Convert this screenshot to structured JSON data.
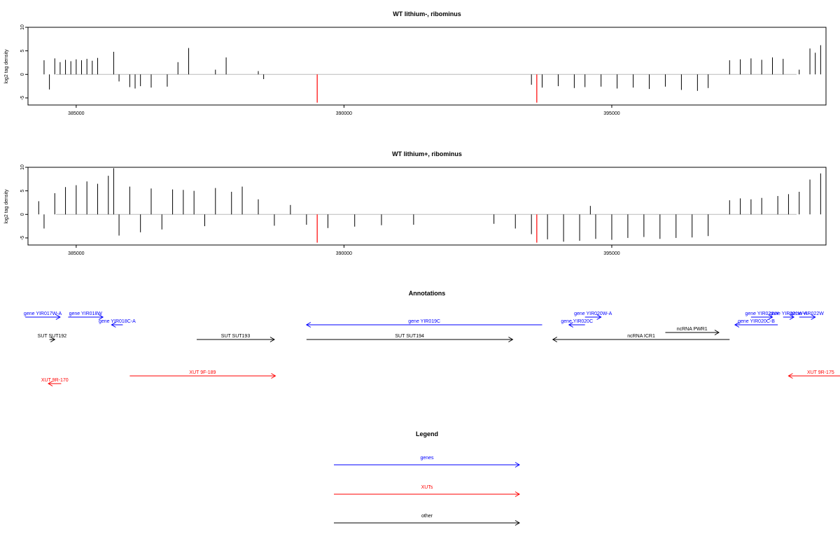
{
  "chart_data": [
    {
      "type": "bar",
      "title": "WT lithium-, ribominus",
      "xlabel": "",
      "ylabel": "log2 tag density",
      "xlim": [
        384100,
        399000
      ],
      "ylim": [
        -6.5,
        10
      ],
      "x_ticks": [
        385000,
        390000,
        395000
      ],
      "y_ticks": [
        -5,
        0,
        5,
        10
      ],
      "marker_positions": [
        389500,
        393600
      ],
      "marker_color": "#ff0000",
      "marker_value": -6,
      "bar_color": "#000000",
      "bars": [
        [
          384400,
          3.0
        ],
        [
          384500,
          -3.2
        ],
        [
          384600,
          3.4
        ],
        [
          384700,
          2.6
        ],
        [
          384800,
          3.1
        ],
        [
          384900,
          2.8
        ],
        [
          385000,
          3.2
        ],
        [
          385100,
          3.0
        ],
        [
          385200,
          3.3
        ],
        [
          385300,
          2.9
        ],
        [
          385400,
          3.5
        ],
        [
          385700,
          4.8
        ],
        [
          385800,
          -1.5
        ],
        [
          386000,
          -2.7
        ],
        [
          386100,
          -3.0
        ],
        [
          386200,
          -2.5
        ],
        [
          386400,
          -2.8
        ],
        [
          386700,
          -2.6
        ],
        [
          386900,
          2.6
        ],
        [
          387100,
          5.6
        ],
        [
          387600,
          1.0
        ],
        [
          387800,
          3.6
        ],
        [
          388400,
          0.7
        ],
        [
          388500,
          -1.0
        ],
        [
          393500,
          -2.2
        ],
        [
          393700,
          -2.8
        ],
        [
          394000,
          -2.5
        ],
        [
          394300,
          -2.9
        ],
        [
          394500,
          -2.7
        ],
        [
          394800,
          -2.6
        ],
        [
          395100,
          -3.0
        ],
        [
          395400,
          -2.8
        ],
        [
          395700,
          -3.1
        ],
        [
          396000,
          -2.6
        ],
        [
          396300,
          -3.3
        ],
        [
          396600,
          -3.5
        ],
        [
          396800,
          -2.9
        ],
        [
          397200,
          3.0
        ],
        [
          397400,
          3.2
        ],
        [
          397600,
          3.4
        ],
        [
          397800,
          3.1
        ],
        [
          398000,
          3.6
        ],
        [
          398200,
          3.3
        ],
        [
          398500,
          1.0
        ],
        [
          398700,
          5.5
        ],
        [
          398800,
          4.6
        ],
        [
          398900,
          6.2
        ]
      ]
    },
    {
      "type": "bar",
      "title": "WT lithium+, ribominus",
      "xlabel": "",
      "ylabel": "log2 tag density",
      "xlim": [
        384100,
        399000
      ],
      "ylim": [
        -6.5,
        10
      ],
      "x_ticks": [
        385000,
        390000,
        395000
      ],
      "y_ticks": [
        -5,
        0,
        5,
        10
      ],
      "marker_positions": [
        389500,
        393600
      ],
      "marker_color": "#ff0000",
      "marker_value": -6,
      "bar_color": "#000000",
      "bars": [
        [
          384300,
          2.8
        ],
        [
          384400,
          -3.0
        ],
        [
          384600,
          4.5
        ],
        [
          384800,
          5.8
        ],
        [
          385000,
          6.2
        ],
        [
          385200,
          7.0
        ],
        [
          385400,
          6.5
        ],
        [
          385600,
          8.2
        ],
        [
          385700,
          9.8
        ],
        [
          385800,
          -4.5
        ],
        [
          386000,
          5.9
        ],
        [
          386200,
          -3.8
        ],
        [
          386400,
          5.5
        ],
        [
          386600,
          -3.2
        ],
        [
          386800,
          5.3
        ],
        [
          387000,
          5.2
        ],
        [
          387200,
          5.0
        ],
        [
          387400,
          -2.5
        ],
        [
          387600,
          5.6
        ],
        [
          387900,
          4.8
        ],
        [
          388100,
          5.9
        ],
        [
          388400,
          3.2
        ],
        [
          388700,
          -2.4
        ],
        [
          389000,
          2.0
        ],
        [
          389300,
          -2.2
        ],
        [
          389700,
          -2.9
        ],
        [
          390200,
          -2.6
        ],
        [
          390700,
          -2.3
        ],
        [
          391300,
          -2.2
        ],
        [
          392800,
          -2.0
        ],
        [
          393200,
          -3.0
        ],
        [
          393500,
          -4.2
        ],
        [
          393800,
          -5.3
        ],
        [
          394100,
          -5.8
        ],
        [
          394400,
          -5.6
        ],
        [
          394600,
          1.8
        ],
        [
          394700,
          -5.2
        ],
        [
          395000,
          -5.4
        ],
        [
          395300,
          -5.0
        ],
        [
          395600,
          -4.8
        ],
        [
          395900,
          -5.2
        ],
        [
          396200,
          -5.0
        ],
        [
          396500,
          -4.9
        ],
        [
          396800,
          -4.6
        ],
        [
          397200,
          3.0
        ],
        [
          397400,
          3.4
        ],
        [
          397600,
          3.2
        ],
        [
          397800,
          3.5
        ],
        [
          398100,
          3.9
        ],
        [
          398300,
          4.3
        ],
        [
          398500,
          4.8
        ],
        [
          398700,
          7.4
        ],
        [
          398900,
          8.7
        ]
      ]
    }
  ],
  "annotations": {
    "title": "Annotations",
    "colors": {
      "genes": "#0000ff",
      "xuts": "#ff0000",
      "other": "#000000"
    },
    "items": [
      {
        "label": "gene YIR017W-A",
        "color": "#0000ff",
        "start": 384050,
        "end": 384700,
        "dir": "right",
        "row": 0
      },
      {
        "label": "gene YIR018W",
        "color": "#0000ff",
        "start": 384850,
        "end": 385500,
        "dir": "right",
        "row": 0
      },
      {
        "label": "gene YIR018C-A",
        "color": "#0000ff",
        "start": 385660,
        "end": 385870,
        "dir": "left",
        "row": 1
      },
      {
        "label": "SUT SUT192",
        "color": "#000000",
        "start": 384500,
        "end": 384600,
        "dir": "right",
        "row": 3
      },
      {
        "label": "SUT SUT193",
        "color": "#000000",
        "start": 387250,
        "end": 388700,
        "dir": "right",
        "row": 3
      },
      {
        "label": "SUT SUT194",
        "color": "#000000",
        "start": 389300,
        "end": 393150,
        "dir": "right",
        "row": 3
      },
      {
        "label": "XUT 9R-170",
        "color": "#ff0000",
        "start": 384480,
        "end": 384720,
        "dir": "left",
        "row": 4
      },
      {
        "label": "XUT 9F-189",
        "color": "#ff0000",
        "start": 386000,
        "end": 388720,
        "dir": "right",
        "row": 5
      },
      {
        "label": "gene YIR019C",
        "color": "#0000ff",
        "start": 389300,
        "end": 393700,
        "dir": "left",
        "row": 1
      },
      {
        "label": "gene YIR020W-A",
        "color": "#0000ff",
        "start": 394500,
        "end": 394800,
        "dir": "right",
        "row": 0
      },
      {
        "label": "gene YIR020C",
        "color": "#0000ff",
        "start": 394200,
        "end": 394500,
        "dir": "left",
        "row": 1
      },
      {
        "label": "ncRNA PWR1",
        "color": "#000000",
        "start": 396000,
        "end": 397000,
        "dir": "right",
        "row": 2
      },
      {
        "label": "ncRNA ICR1",
        "color": "#000000",
        "start": 393900,
        "end": 397200,
        "dir": "left",
        "row": 3
      },
      {
        "label": "gene YIR021W",
        "color": "#0000ff",
        "start": 397600,
        "end": 398000,
        "dir": "right",
        "row": 0
      },
      {
        "label": "gene YIR020C-B",
        "color": "#0000ff",
        "start": 397300,
        "end": 398100,
        "dir": "left",
        "row": 1
      },
      {
        "label": "gene YIR021W-A",
        "color": "#0000ff",
        "start": 398200,
        "end": 398400,
        "dir": "right",
        "row": 0
      },
      {
        "label": "gene YIR022W",
        "color": "#0000ff",
        "start": 398500,
        "end": 398800,
        "dir": "right",
        "row": 0
      },
      {
        "label": "XUT 9R-175",
        "color": "#ff0000",
        "start": 398300,
        "end": 399500,
        "dir": "left",
        "row": 5
      }
    ]
  },
  "legend": {
    "title": "Legend",
    "entries": [
      {
        "label": "genes",
        "color": "#0000ff"
      },
      {
        "label": "XUTs",
        "color": "#ff0000"
      },
      {
        "label": "other",
        "color": "#000000"
      }
    ]
  }
}
